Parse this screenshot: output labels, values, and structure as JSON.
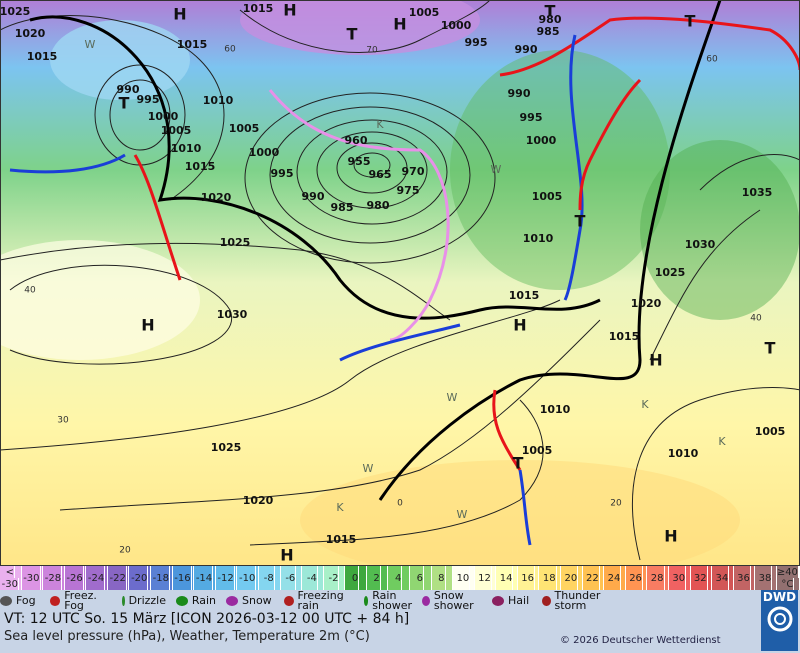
{
  "map": {
    "pressure_labels": [
      1025,
      1020,
      1015,
      1015,
      1015,
      1010,
      1005,
      1000,
      995,
      990,
      985,
      980,
      975,
      970,
      965,
      960,
      955,
      1005,
      1000,
      995,
      990,
      985,
      980,
      990,
      995,
      1000,
      1005,
      1010,
      1015,
      990,
      995,
      1000,
      1005,
      1010,
      1015,
      1020,
      1025,
      1030,
      1025,
      1020,
      1015,
      1035,
      1030,
      1025,
      1020,
      1015,
      1010,
      1005,
      1010,
      1005
    ],
    "centers": [
      "H",
      "H",
      "H",
      "H",
      "H",
      "H",
      "H",
      "H",
      "T",
      "T",
      "T",
      "T",
      "T",
      "T",
      "T"
    ],
    "isotherm_labels": [
      60,
      70,
      40,
      30,
      20,
      0,
      20,
      40,
      60
    ],
    "air_mass_labels": [
      "W",
      "K",
      "W",
      "K",
      "W",
      "W",
      "K",
      "W",
      "K"
    ]
  },
  "color_scale": {
    "below_label": [
      "<",
      "-30"
    ],
    "values": [
      -30,
      -28,
      -26,
      -24,
      -22,
      -20,
      -18,
      -16,
      -14,
      -12,
      -10,
      -8,
      -6,
      -4,
      -2,
      0,
      2,
      4,
      6,
      8,
      10,
      12,
      14,
      16,
      18,
      20,
      22,
      24,
      26,
      28,
      30,
      32,
      34,
      36,
      38
    ],
    "above_label": [
      "≥40",
      "°C"
    ],
    "below_color": "#eab0ee",
    "colors": [
      "#dc94e4",
      "#cc84dc",
      "#b874d4",
      "#a06ccc",
      "#8866c4",
      "#6c6ccc",
      "#5a80d4",
      "#4c96dc",
      "#54aae2",
      "#62bcea",
      "#74caf0",
      "#84d6f0",
      "#94e0e8",
      "#9ce8d8",
      "#a8f0c8",
      "#3ea83e",
      "#52bc50",
      "#70cc60",
      "#90d672",
      "#b0e084",
      "#fffff2",
      "#ffffd4",
      "#ffffb4",
      "#fff294",
      "#ffe474",
      "#ffd462",
      "#ffc252",
      "#ffaa4a",
      "#ff9452",
      "#f87c62",
      "#f06262",
      "#e25454",
      "#d25656",
      "#c26464",
      "#a47272"
    ],
    "above_color": "#927070"
  },
  "legend": [
    "Fog",
    "Freez. Fog",
    "Drizzle",
    "Rain",
    "Snow",
    "Freezing rain",
    "Rain shower",
    "Snow shower",
    "Hail",
    "Thunder storm"
  ],
  "footer": {
    "valid_time": "VT: 12 UTC So.  15 März [ICON 2026-03-12  00 UTC + 84 h]",
    "description": "Sea level pressure (hPa), Weather, Temperature 2m (°C)",
    "copyright": "© 2026 Deutscher Wetterdienst",
    "logo": "DWD"
  }
}
